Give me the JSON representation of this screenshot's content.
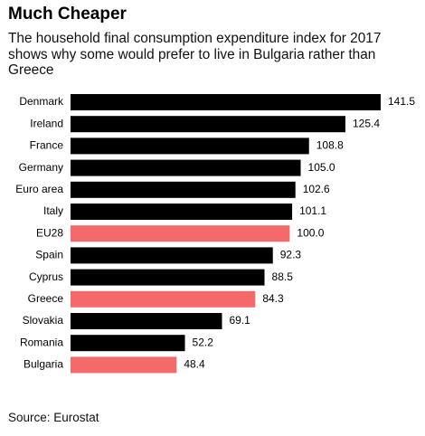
{
  "chart_data": {
    "type": "bar",
    "orientation": "horizontal",
    "title": "Much Cheaper",
    "subtitle": "The household final consumption expenditure index for 2017 shows why some would prefer to live in Bulgaria rather than Greece",
    "categories": [
      "Denmark",
      "Ireland",
      "France",
      "Germany",
      "Euro area",
      "Italy",
      "EU28",
      "Spain",
      "Cyprus",
      "Greece",
      "Slovakia",
      "Romania",
      "Bulgaria"
    ],
    "values": [
      141.5,
      125.4,
      108.8,
      105.0,
      102.6,
      101.1,
      100.0,
      92.3,
      88.5,
      84.3,
      69.1,
      52.2,
      48.4
    ],
    "value_labels": [
      "141.5",
      "125.4",
      "108.8",
      "105.0",
      "102.6",
      "101.1",
      "100.0",
      "92.3",
      "88.5",
      "84.3",
      "69.1",
      "52.2",
      "48.4"
    ],
    "colors": [
      "#000000",
      "#000000",
      "#000000",
      "#000000",
      "#000000",
      "#000000",
      "#f46a6a",
      "#000000",
      "#000000",
      "#f46a6a",
      "#000000",
      "#000000",
      "#f46a6a"
    ],
    "source": "Source: Eurostat"
  }
}
